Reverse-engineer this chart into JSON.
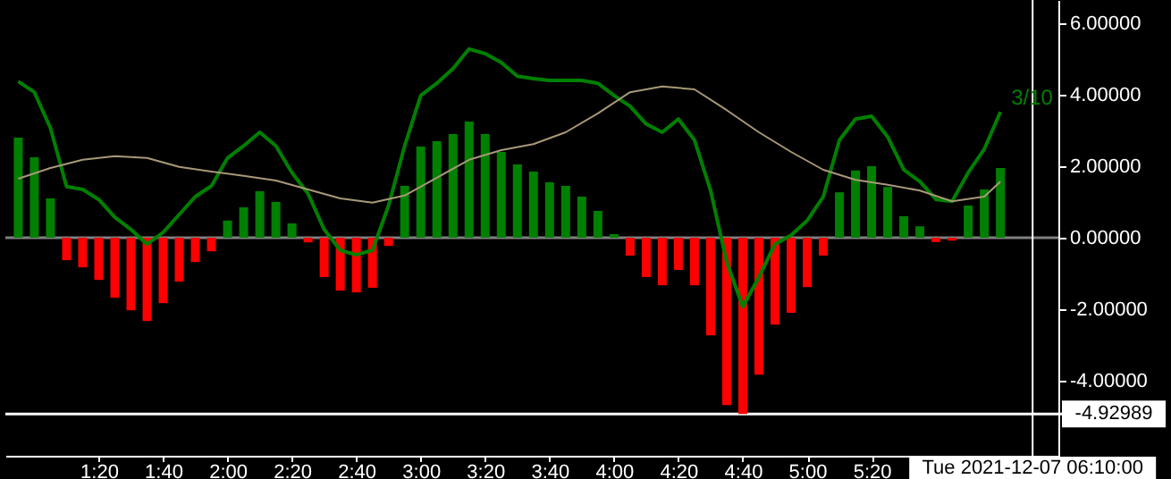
{
  "chart_data": {
    "type": "bar",
    "x": [
      0.9167,
      1.0,
      1.0833,
      1.1667,
      1.25,
      1.3333,
      1.4167,
      1.5,
      1.5833,
      1.6667,
      1.75,
      1.8333,
      1.9167,
      2.0,
      2.0833,
      2.1667,
      2.25,
      2.3333,
      2.4167,
      2.5,
      2.5833,
      2.6667,
      2.75,
      2.8333,
      2.9167,
      3.0,
      3.0833,
      3.1667,
      3.25,
      3.3333,
      3.4167,
      3.5,
      3.5833,
      3.6667,
      3.75,
      3.8333,
      3.9167,
      4.0,
      4.0833,
      4.1667,
      4.25,
      4.3333,
      4.4167,
      4.5,
      4.5833,
      4.6667,
      4.75,
      4.8333,
      4.9167,
      5.0,
      5.0833,
      5.1667,
      5.25,
      5.3333,
      5.4167,
      5.5,
      5.5833,
      5.6667,
      5.75,
      5.8333,
      5.9167,
      6.0
    ],
    "series": [
      {
        "values": [
          2.8,
          2.25,
          1.1,
          -0.63,
          -0.83,
          -1.18,
          -1.68,
          -2.03,
          -2.33,
          -1.83,
          -1.23,
          -0.68,
          -0.38,
          0.48,
          0.85,
          1.3,
          1.0,
          0.4,
          -0.13,
          -1.1,
          -1.48,
          -1.53,
          -1.4,
          -0.23,
          1.45,
          2.55,
          2.7,
          2.9,
          3.25,
          2.9,
          2.4,
          2.05,
          1.85,
          1.55,
          1.45,
          1.15,
          0.75,
          0.1,
          -0.5,
          -1.1,
          -1.33,
          -0.9,
          -1.33,
          -2.73,
          -4.68,
          -4.93,
          -3.83,
          -2.43,
          -2.1,
          -1.38,
          -0.5,
          1.27,
          1.88,
          2.0,
          1.42,
          0.6,
          0.32,
          -0.12,
          -0.08,
          0.9,
          1.35,
          1.95
        ],
        "colors": [
          "#008000",
          "#008000",
          "#008000",
          "#ff0000",
          "#ff0000",
          "#ff0000",
          "#ff0000",
          "#ff0000",
          "#ff0000",
          "#ff0000",
          "#ff0000",
          "#ff0000",
          "#ff0000",
          "#008000",
          "#008000",
          "#008000",
          "#008000",
          "#008000",
          "#ff0000",
          "#ff0000",
          "#ff0000",
          "#ff0000",
          "#ff0000",
          "#ff0000",
          "#008000",
          "#008000",
          "#008000",
          "#008000",
          "#008000",
          "#008000",
          "#008000",
          "#008000",
          "#008000",
          "#008000",
          "#008000",
          "#008000",
          "#008000",
          "#008000",
          "#ff0000",
          "#ff0000",
          "#ff0000",
          "#ff0000",
          "#ff0000",
          "#ff0000",
          "#ff0000",
          "#ff0000",
          "#ff0000",
          "#ff0000",
          "#ff0000",
          "#ff0000",
          "#ff0000",
          "#008000",
          "#008000",
          "#008000",
          "#008000",
          "#008000",
          "#008000",
          "#ff0000",
          "#ff0000",
          "#008000",
          "#008000",
          "#008000"
        ]
      },
      {
        "type": "line",
        "name": "3/10",
        "color": "#008000",
        "values": [
          4.37,
          4.07,
          3.07,
          1.43,
          1.35,
          1.07,
          0.57,
          0.23,
          -0.18,
          0.15,
          0.65,
          1.15,
          1.45,
          2.23,
          2.57,
          2.95,
          2.57,
          1.82,
          1.23,
          0.23,
          -0.35,
          -0.48,
          -0.35,
          0.9,
          2.57,
          3.98,
          4.32,
          4.73,
          5.28,
          5.15,
          4.9,
          4.52,
          4.45,
          4.4,
          4.4,
          4.4,
          4.32,
          3.98,
          3.68,
          3.18,
          2.95,
          3.32,
          2.73,
          1.32,
          -0.68,
          -1.93,
          -1.1,
          -0.18,
          0.07,
          0.48,
          1.15,
          2.73,
          3.32,
          3.4,
          2.82,
          1.9,
          1.57,
          1.07,
          1.02,
          1.82,
          2.48,
          3.52
        ]
      },
      {
        "type": "line",
        "color": "#a89878",
        "x": [
          0.9167,
          1.0833,
          1.25,
          1.4167,
          1.5833,
          1.75,
          1.9167,
          2.0833,
          2.25,
          2.4167,
          2.5833,
          2.75,
          2.9167,
          3.0833,
          3.25,
          3.4167,
          3.5833,
          3.75,
          3.9167,
          4.0833,
          4.25,
          4.4167,
          4.5833,
          4.75,
          4.9167,
          5.0833,
          5.25,
          5.4167,
          5.5833,
          5.75,
          5.9167,
          6.0
        ],
        "values": [
          1.65,
          1.95,
          2.18,
          2.28,
          2.23,
          1.98,
          1.85,
          1.73,
          1.6,
          1.35,
          1.1,
          0.98,
          1.18,
          1.68,
          2.18,
          2.45,
          2.62,
          2.95,
          3.48,
          4.07,
          4.23,
          4.15,
          3.57,
          2.95,
          2.4,
          1.9,
          1.62,
          1.48,
          1.32,
          1.02,
          1.15,
          1.57
        ]
      }
    ],
    "xlim": [
      0.85,
      6.3
    ],
    "xticks": [
      {
        "value": 1.3333,
        "label": "1:20"
      },
      {
        "value": 1.6667,
        "label": "1:40"
      },
      {
        "value": 2.0,
        "label": "2:00"
      },
      {
        "value": 2.3333,
        "label": "2:20"
      },
      {
        "value": 2.6667,
        "label": "2:40"
      },
      {
        "value": 3.0,
        "label": "3:00"
      },
      {
        "value": 3.3333,
        "label": "3:20"
      },
      {
        "value": 3.6667,
        "label": "3:40"
      },
      {
        "value": 4.0,
        "label": "4:00"
      },
      {
        "value": 4.3333,
        "label": "4:20"
      },
      {
        "value": 4.6667,
        "label": "4:40"
      },
      {
        "value": 5.0,
        "label": "5:00"
      },
      {
        "value": 5.3333,
        "label": "5:20"
      }
    ],
    "ylim": [
      -6.1,
      6.65
    ],
    "yticks": [
      {
        "value": -4,
        "label": "-4.00000"
      },
      {
        "value": -2,
        "label": "-2.00000"
      },
      {
        "value": 0,
        "label": "0.00000"
      },
      {
        "value": 2,
        "label": "2.00000"
      },
      {
        "value": 4,
        "label": "4.00000"
      },
      {
        "value": 6,
        "label": "6.00000"
      }
    ],
    "ref_lines": [
      {
        "axis": "y",
        "value": 0,
        "color": "#808080"
      },
      {
        "axis": "y",
        "value": -4.92989,
        "label": "-4.92989",
        "color": "#ffffff"
      },
      {
        "axis": "x",
        "value": 6.1667,
        "label": "Tue 2021-12-07 06:10:00",
        "color": "#ffffff"
      }
    ]
  }
}
